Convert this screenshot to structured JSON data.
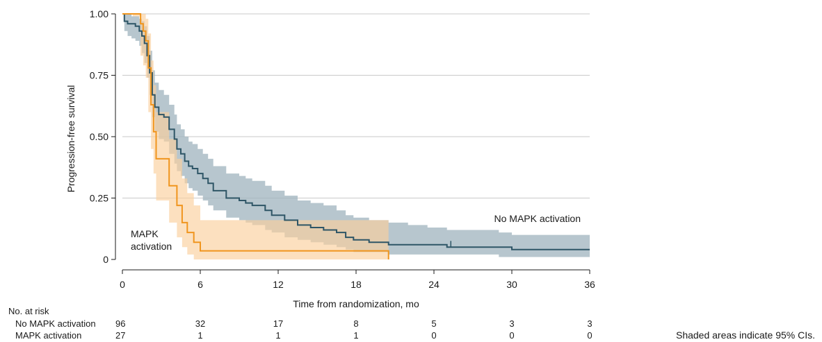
{
  "chart_data": {
    "type": "line",
    "subtype": "kaplan-meier step curves with 95% CI bands",
    "title": "",
    "xlabel": "Time from randomization, mo",
    "ylabel": "Progression-free survival",
    "xlim": [
      0,
      36
    ],
    "ylim": [
      0,
      1
    ],
    "x_ticks": [
      0,
      6,
      12,
      18,
      24,
      30,
      36
    ],
    "y_ticks": [
      0,
      0.25,
      0.5,
      0.75,
      1.0
    ],
    "y_tick_labels": [
      "0",
      "0.25",
      "0.50",
      "0.75",
      "1.00"
    ],
    "grid": "horizontal",
    "note": "Shaded areas indicate 95% CIs.",
    "colors": {
      "no_mapk": "#2e5566",
      "no_mapk_ci": "#9fb3be",
      "mapk": "#f0951e",
      "mapk_ci": "#fbcf9c"
    },
    "series": [
      {
        "name": "No MAPK activation",
        "color": "#2e5566",
        "x": [
          0,
          0.15,
          0.4,
          0.7,
          1.0,
          1.3,
          1.5,
          1.7,
          1.9,
          2.1,
          2.3,
          2.5,
          2.8,
          3.2,
          3.6,
          4.0,
          4.2,
          4.5,
          4.8,
          5.1,
          5.4,
          5.8,
          6.2,
          6.6,
          7.0,
          8.0,
          9.0,
          9.5,
          10.0,
          11.0,
          11.5,
          12.5,
          13.5,
          14.5,
          15.5,
          16.5,
          17.2,
          17.8,
          19.0,
          20.5,
          22.0,
          23.5,
          25.0,
          27.0,
          29.0,
          30.0,
          33.0,
          36.0
        ],
        "y": [
          1.0,
          0.97,
          0.96,
          0.96,
          0.95,
          0.93,
          0.91,
          0.88,
          0.83,
          0.76,
          0.67,
          0.62,
          0.59,
          0.58,
          0.53,
          0.49,
          0.45,
          0.43,
          0.4,
          0.38,
          0.37,
          0.35,
          0.33,
          0.31,
          0.28,
          0.25,
          0.24,
          0.23,
          0.22,
          0.2,
          0.18,
          0.16,
          0.14,
          0.13,
          0.12,
          0.11,
          0.09,
          0.08,
          0.07,
          0.06,
          0.06,
          0.06,
          0.05,
          0.05,
          0.05,
          0.04,
          0.04,
          0.04
        ],
        "ci_upper": [
          1.0,
          1.0,
          1.0,
          0.99,
          0.99,
          0.98,
          0.97,
          0.95,
          0.91,
          0.85,
          0.77,
          0.72,
          0.69,
          0.67,
          0.63,
          0.59,
          0.55,
          0.53,
          0.5,
          0.48,
          0.47,
          0.45,
          0.43,
          0.41,
          0.38,
          0.35,
          0.34,
          0.33,
          0.32,
          0.3,
          0.28,
          0.26,
          0.24,
          0.23,
          0.22,
          0.2,
          0.18,
          0.17,
          0.16,
          0.15,
          0.14,
          0.13,
          0.12,
          0.12,
          0.11,
          0.1,
          0.1,
          0.1
        ],
        "ci_lower": [
          1.0,
          0.93,
          0.91,
          0.9,
          0.89,
          0.87,
          0.84,
          0.8,
          0.74,
          0.67,
          0.58,
          0.52,
          0.49,
          0.48,
          0.43,
          0.39,
          0.36,
          0.34,
          0.31,
          0.29,
          0.28,
          0.26,
          0.24,
          0.22,
          0.2,
          0.17,
          0.16,
          0.15,
          0.14,
          0.12,
          0.11,
          0.09,
          0.08,
          0.07,
          0.06,
          0.05,
          0.04,
          0.03,
          0.03,
          0.02,
          0.02,
          0.02,
          0.02,
          0.02,
          0.01,
          0.01,
          0.01,
          0.01
        ],
        "censor_marks_x": [
          25.3
        ],
        "label": "No MAPK activation"
      },
      {
        "name": "MAPK activation",
        "color": "#f0951e",
        "x": [
          0,
          0.8,
          1.4,
          1.6,
          1.8,
          2.0,
          2.2,
          2.4,
          2.6,
          3.6,
          4.2,
          4.6,
          5.0,
          5.5,
          6.0,
          9.0,
          12.0,
          15.0,
          18.0,
          20.5
        ],
        "y": [
          1.0,
          1.0,
          0.96,
          0.93,
          0.89,
          0.78,
          0.63,
          0.52,
          0.41,
          0.3,
          0.22,
          0.15,
          0.11,
          0.07,
          0.035,
          0.035,
          0.035,
          0.035,
          0.035,
          0.0
        ],
        "ci_upper": [
          1.0,
          1.0,
          1.0,
          1.0,
          0.98,
          0.92,
          0.81,
          0.71,
          0.6,
          0.49,
          0.41,
          0.33,
          0.27,
          0.22,
          0.16,
          0.16,
          0.16,
          0.16,
          0.16,
          0.16
        ],
        "ci_lower": [
          1.0,
          0.99,
          0.83,
          0.79,
          0.74,
          0.6,
          0.45,
          0.35,
          0.24,
          0.15,
          0.09,
          0.05,
          0.02,
          0.0,
          0.0,
          0.0,
          0.0,
          0.0,
          0.0,
          0.0
        ],
        "censor_marks_x": [],
        "label": "MAPK activation"
      }
    ],
    "risk_table": {
      "title": "No. at risk",
      "times": [
        0,
        6,
        12,
        18,
        24,
        30,
        36
      ],
      "rows": [
        {
          "label": "No MAPK activation",
          "counts": [
            "96",
            "32",
            "17",
            "8",
            "5",
            "3",
            "3"
          ]
        },
        {
          "label": "MAPK activation",
          "counts": [
            "27",
            "1",
            "1",
            "1",
            "0",
            "0",
            "0"
          ]
        }
      ]
    }
  }
}
